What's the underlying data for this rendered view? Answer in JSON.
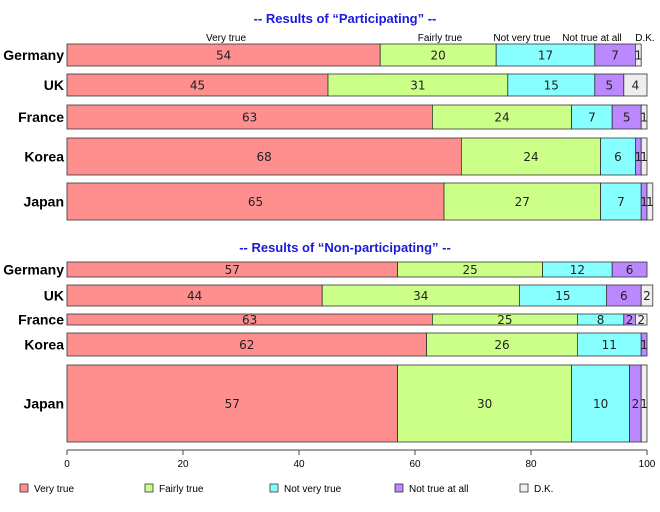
{
  "chart_data": {
    "type": "bar",
    "orientation": "horizontal-stacked-100",
    "categories_order": [
      "Very true",
      "Fairly true",
      "Not very true",
      "Not true at all",
      "D.K."
    ],
    "legend": [
      {
        "name": "Very true",
        "color": "#ff8f8f"
      },
      {
        "name": "Fairly true",
        "color": "#ccff88"
      },
      {
        "name": "Not very true",
        "color": "#88ffff"
      },
      {
        "name": "Not true at all",
        "color": "#bb88ff"
      },
      {
        "name": "D.K.",
        "color": "#eeeeee"
      }
    ],
    "column_labels": [
      "Very true",
      "Fairly true",
      "Not very true",
      "Not true at all",
      "D.K."
    ],
    "xlim": [
      0,
      100
    ],
    "xticks": [
      "0",
      "20",
      "40",
      "60",
      "80",
      "100"
    ],
    "panels": [
      {
        "title": "-- Results of “Participating” --",
        "rows": [
          {
            "country": "Germany",
            "values": [
              54,
              20,
              17,
              7,
              1
            ]
          },
          {
            "country": "UK",
            "values": [
              45,
              31,
              15,
              5,
              4
            ]
          },
          {
            "country": "France",
            "values": [
              63,
              24,
              7,
              5,
              1
            ]
          },
          {
            "country": "Korea",
            "values": [
              68,
              24,
              6,
              1,
              1
            ]
          },
          {
            "country": "Japan",
            "values": [
              65,
              27,
              7,
              1,
              1
            ]
          }
        ]
      },
      {
        "title": "-- Results of “Non-participating” --",
        "rows": [
          {
            "country": "Germany",
            "values": [
              57,
              25,
              12,
              6,
              0
            ]
          },
          {
            "country": "UK",
            "values": [
              44,
              34,
              15,
              6,
              2
            ]
          },
          {
            "country": "France",
            "values": [
              63,
              25,
              8,
              2,
              2
            ]
          },
          {
            "country": "Korea",
            "values": [
              62,
              26,
              11,
              1,
              0
            ]
          },
          {
            "country": "Japan",
            "values": [
              57,
              30,
              10,
              2,
              1
            ]
          }
        ]
      }
    ]
  }
}
